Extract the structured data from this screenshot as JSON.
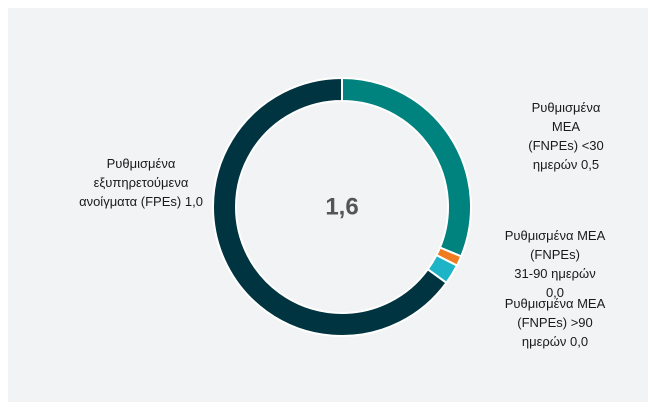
{
  "chart_data": {
    "type": "donut",
    "center_label": "1,6",
    "series": [
      {
        "name": "Ρυθμισμένα ΜΕΑ\n(FNPEs) <30 ημερών",
        "color": "#00827f",
        "value": 0.5,
        "value_label": "0,5"
      },
      {
        "name": "Ρυθμισμένα ΜΕΑ\n(FNPEs)\n31-90 ημερών",
        "color": "#f07c22",
        "value": 0.02,
        "value_label": "0,0"
      },
      {
        "name": "Ρυθμισμένα ΜΕΑ\n(FNPEs) >90 ημερών",
        "color": "#1eb4c8",
        "value": 0.04,
        "value_label": "0,0"
      },
      {
        "name": "Ρυθμισμένα\nεξυπηρετούμενα\nανοίγματα (FPEs)",
        "color": "#003440",
        "value": 1.04,
        "value_label": "1,0"
      }
    ]
  }
}
